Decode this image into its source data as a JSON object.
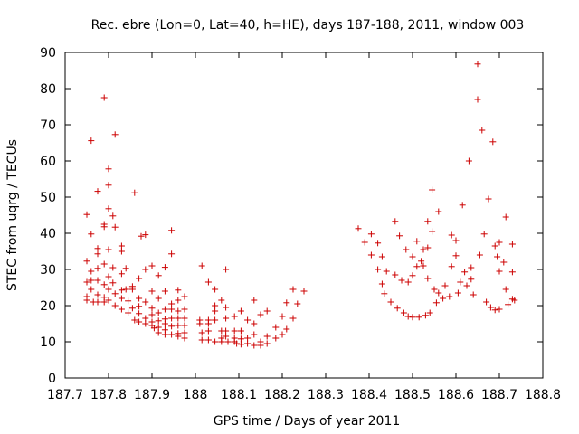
{
  "chart_data": {
    "type": "scatter",
    "title": "Rec. ebre (Lon=0, Lat=40, h=HE), days 187-188, 2011, window 003",
    "xlabel": "GPS time / Days of year 2011",
    "ylabel": "STEC from uqrg / TECUs",
    "xlim": [
      187.7,
      188.8
    ],
    "ylim": [
      0,
      90
    ],
    "xticks": [
      "187.7",
      "187.8",
      "187.9",
      "188",
      "188.1",
      "188.2",
      "188.3",
      "188.4",
      "188.5",
      "188.6",
      "188.7",
      "188.8"
    ],
    "yticks": [
      "0",
      "10",
      "20",
      "30",
      "40",
      "50",
      "60",
      "70",
      "80",
      "90"
    ],
    "grid": false,
    "legend": "none",
    "marker": "+",
    "color": "#cc0000",
    "points": [
      [
        187.75,
        45.2
      ],
      [
        187.75,
        32.3
      ],
      [
        187.75,
        26.5
      ],
      [
        187.75,
        22.5
      ],
      [
        187.75,
        21.5
      ],
      [
        187.76,
        65.6
      ],
      [
        187.76,
        39.8
      ],
      [
        187.76,
        29.5
      ],
      [
        187.76,
        27.0
      ],
      [
        187.76,
        24.5
      ],
      [
        187.765,
        21.0
      ],
      [
        187.775,
        51.6
      ],
      [
        187.775,
        35.8
      ],
      [
        187.775,
        34.3
      ],
      [
        187.775,
        30.3
      ],
      [
        187.775,
        27.0
      ],
      [
        187.775,
        23.0
      ],
      [
        187.775,
        21.0
      ],
      [
        187.79,
        77.5
      ],
      [
        187.79,
        42.5
      ],
      [
        187.79,
        41.8
      ],
      [
        187.79,
        31.5
      ],
      [
        187.79,
        25.8
      ],
      [
        187.79,
        22.3
      ],
      [
        187.79,
        21.0
      ],
      [
        187.8,
        57.8
      ],
      [
        187.8,
        53.3
      ],
      [
        187.8,
        46.8
      ],
      [
        187.8,
        35.5
      ],
      [
        187.8,
        28.0
      ],
      [
        187.8,
        24.5
      ],
      [
        187.8,
        21.5
      ],
      [
        187.815,
        67.3
      ],
      [
        187.81,
        44.8
      ],
      [
        187.815,
        41.7
      ],
      [
        187.81,
        30.5
      ],
      [
        187.81,
        26.3
      ],
      [
        187.815,
        23.3
      ],
      [
        187.815,
        20.0
      ],
      [
        187.83,
        36.5
      ],
      [
        187.83,
        35.0
      ],
      [
        187.83,
        28.8
      ],
      [
        187.83,
        24.3
      ],
      [
        187.83,
        22.0
      ],
      [
        187.83,
        19.0
      ],
      [
        187.84,
        30.3
      ],
      [
        187.84,
        24.5
      ],
      [
        187.845,
        21.3
      ],
      [
        187.845,
        18.0
      ],
      [
        187.86,
        51.2
      ],
      [
        187.855,
        25.3
      ],
      [
        187.855,
        24.5
      ],
      [
        187.855,
        19.3
      ],
      [
        187.86,
        16.0
      ],
      [
        187.875,
        39.2
      ],
      [
        187.87,
        27.5
      ],
      [
        187.87,
        22.0
      ],
      [
        187.87,
        19.8
      ],
      [
        187.87,
        17.8
      ],
      [
        187.87,
        15.5
      ],
      [
        187.885,
        39.6
      ],
      [
        187.885,
        30.0
      ],
      [
        187.885,
        21.0
      ],
      [
        187.885,
        16.5
      ],
      [
        187.885,
        15.0
      ],
      [
        187.9,
        31.0
      ],
      [
        187.9,
        24.0
      ],
      [
        187.9,
        19.3
      ],
      [
        187.9,
        17.5
      ],
      [
        187.9,
        15.5
      ],
      [
        187.9,
        14.5
      ],
      [
        187.905,
        13.8
      ],
      [
        187.915,
        28.3
      ],
      [
        187.915,
        22.0
      ],
      [
        187.915,
        18.0
      ],
      [
        187.915,
        15.8
      ],
      [
        187.915,
        14.0
      ],
      [
        187.915,
        12.5
      ],
      [
        187.93,
        30.6
      ],
      [
        187.93,
        24.0
      ],
      [
        187.93,
        19.0
      ],
      [
        187.93,
        16.3
      ],
      [
        187.93,
        15.0
      ],
      [
        187.93,
        13.3
      ],
      [
        187.93,
        12.0
      ],
      [
        187.945,
        40.8
      ],
      [
        187.945,
        34.3
      ],
      [
        187.945,
        20.5
      ],
      [
        187.945,
        19.0
      ],
      [
        187.945,
        16.5
      ],
      [
        187.945,
        14.3
      ],
      [
        187.945,
        12.0
      ],
      [
        187.96,
        24.3
      ],
      [
        187.96,
        21.5
      ],
      [
        187.96,
        18.5
      ],
      [
        187.96,
        16.5
      ],
      [
        187.96,
        14.5
      ],
      [
        187.96,
        12.3
      ],
      [
        187.96,
        11.5
      ],
      [
        187.975,
        22.5
      ],
      [
        187.975,
        19.0
      ],
      [
        187.975,
        16.5
      ],
      [
        187.975,
        14.5
      ],
      [
        187.975,
        12.5
      ],
      [
        187.975,
        11.0
      ],
      [
        188.015,
        31.0
      ],
      [
        188.01,
        16.0
      ],
      [
        188.01,
        15.0
      ],
      [
        188.015,
        12.5
      ],
      [
        188.015,
        10.5
      ],
      [
        188.03,
        26.5
      ],
      [
        188.03,
        16.0
      ],
      [
        188.03,
        15.0
      ],
      [
        188.03,
        13.0
      ],
      [
        188.03,
        10.5
      ],
      [
        188.045,
        24.5
      ],
      [
        188.045,
        20.0
      ],
      [
        188.045,
        18.5
      ],
      [
        188.045,
        16.0
      ],
      [
        188.045,
        10.0
      ],
      [
        188.06,
        21.5
      ],
      [
        188.06,
        13.0
      ],
      [
        188.06,
        11.0
      ],
      [
        188.06,
        10.0
      ],
      [
        188.07,
        30.0
      ],
      [
        188.07,
        19.5
      ],
      [
        188.07,
        16.5
      ],
      [
        188.07,
        13.0
      ],
      [
        188.07,
        11.5
      ],
      [
        188.075,
        10.0
      ],
      [
        188.09,
        17.0
      ],
      [
        188.09,
        13.0
      ],
      [
        188.09,
        11.0
      ],
      [
        188.09,
        10.0
      ],
      [
        188.095,
        9.5
      ],
      [
        188.105,
        18.5
      ],
      [
        188.105,
        13.0
      ],
      [
        188.105,
        10.8
      ],
      [
        188.105,
        9.3
      ],
      [
        188.12,
        16.0
      ],
      [
        188.12,
        11.0
      ],
      [
        188.12,
        9.5
      ],
      [
        188.135,
        21.5
      ],
      [
        188.135,
        15.0
      ],
      [
        188.135,
        12.0
      ],
      [
        188.135,
        9.0
      ],
      [
        188.15,
        17.5
      ],
      [
        188.15,
        10.0
      ],
      [
        188.15,
        9.0
      ],
      [
        188.165,
        18.5
      ],
      [
        188.165,
        11.5
      ],
      [
        188.165,
        9.5
      ],
      [
        188.185,
        14.0
      ],
      [
        188.185,
        11.0
      ],
      [
        188.2,
        17.0
      ],
      [
        188.2,
        12.0
      ],
      [
        188.21,
        20.8
      ],
      [
        188.21,
        13.5
      ],
      [
        188.225,
        24.5
      ],
      [
        188.225,
        16.5
      ],
      [
        188.235,
        20.5
      ],
      [
        188.25,
        24.0
      ],
      [
        188.375,
        41.3
      ],
      [
        188.39,
        37.5
      ],
      [
        188.405,
        34.0
      ],
      [
        188.405,
        39.8
      ],
      [
        188.42,
        30.0
      ],
      [
        188.42,
        37.3
      ],
      [
        188.43,
        33.5
      ],
      [
        188.43,
        26.0
      ],
      [
        188.435,
        23.3
      ],
      [
        188.44,
        29.5
      ],
      [
        188.45,
        21.0
      ],
      [
        188.46,
        43.3
      ],
      [
        188.46,
        28.5
      ],
      [
        188.465,
        19.3
      ],
      [
        188.47,
        39.3
      ],
      [
        188.475,
        27.0
      ],
      [
        188.48,
        18.0
      ],
      [
        188.485,
        35.5
      ],
      [
        188.49,
        26.5
      ],
      [
        188.49,
        17.0
      ],
      [
        188.5,
        33.5
      ],
      [
        188.5,
        28.3
      ],
      [
        188.5,
        16.8
      ],
      [
        188.51,
        37.8
      ],
      [
        188.51,
        30.8
      ],
      [
        188.515,
        16.8
      ],
      [
        188.52,
        32.3
      ],
      [
        188.525,
        35.5
      ],
      [
        188.525,
        31.0
      ],
      [
        188.53,
        17.3
      ],
      [
        188.535,
        43.3
      ],
      [
        188.535,
        36.0
      ],
      [
        188.535,
        27.5
      ],
      [
        188.54,
        18.0
      ],
      [
        188.545,
        52.0
      ],
      [
        188.545,
        40.5
      ],
      [
        188.55,
        24.5
      ],
      [
        188.555,
        20.8
      ],
      [
        188.56,
        46.0
      ],
      [
        188.56,
        23.5
      ],
      [
        188.57,
        22.0
      ],
      [
        188.575,
        25.5
      ],
      [
        188.585,
        22.5
      ],
      [
        188.59,
        39.5
      ],
      [
        188.59,
        30.8
      ],
      [
        188.6,
        38.0
      ],
      [
        188.6,
        33.8
      ],
      [
        188.605,
        23.5
      ],
      [
        188.61,
        26.5
      ],
      [
        188.615,
        47.8
      ],
      [
        188.62,
        29.3
      ],
      [
        188.625,
        25.5
      ],
      [
        188.63,
        60.0
      ],
      [
        188.635,
        30.5
      ],
      [
        188.635,
        27.3
      ],
      [
        188.64,
        23.0
      ],
      [
        188.65,
        86.8
      ],
      [
        188.65,
        77.0
      ],
      [
        188.655,
        34.0
      ],
      [
        188.66,
        68.5
      ],
      [
        188.665,
        39.8
      ],
      [
        188.67,
        21.0
      ],
      [
        188.675,
        49.5
      ],
      [
        188.68,
        19.5
      ],
      [
        188.685,
        65.3
      ],
      [
        188.69,
        36.5
      ],
      [
        188.69,
        18.8
      ],
      [
        188.695,
        33.5
      ],
      [
        188.7,
        37.5
      ],
      [
        188.7,
        29.5
      ],
      [
        188.7,
        19.0
      ],
      [
        188.71,
        32.0
      ],
      [
        188.715,
        44.5
      ],
      [
        188.715,
        24.5
      ],
      [
        188.72,
        20.3
      ],
      [
        188.73,
        37.0
      ],
      [
        188.73,
        29.3
      ],
      [
        188.73,
        21.8
      ],
      [
        188.735,
        21.5
      ]
    ]
  }
}
